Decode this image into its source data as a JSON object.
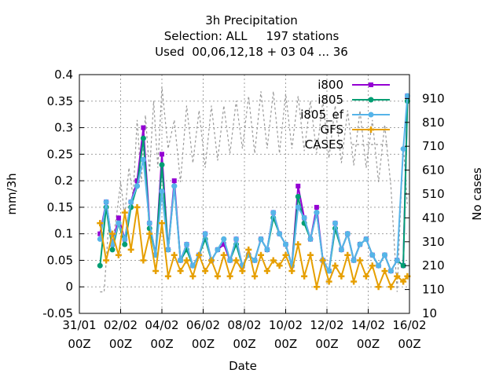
{
  "chart_data": {
    "type": "line",
    "title_lines": [
      "3h Precipitation",
      "Selection: ALL     197 stations",
      "Used  00,06,12,18 + 03 04 ... 36"
    ],
    "xlabel": "Date",
    "ylabel": "mm/3h",
    "y2label": "No cases",
    "x_ticks": [
      {
        "top": "31/01",
        "bottom": "00Z"
      },
      {
        "top": "02/02",
        "bottom": "00Z"
      },
      {
        "top": "04/02",
        "bottom": "00Z"
      },
      {
        "top": "06/02",
        "bottom": "00Z"
      },
      {
        "top": "08/02",
        "bottom": "00Z"
      },
      {
        "top": "10/02",
        "bottom": "00Z"
      },
      {
        "top": "12/02",
        "bottom": "00Z"
      },
      {
        "top": "14/02",
        "bottom": "00Z"
      },
      {
        "top": "16/02",
        "bottom": "00Z"
      }
    ],
    "xlim_days": [
      0,
      16
    ],
    "ylim": [
      -0.05,
      0.4
    ],
    "y_ticks": [
      "-0.05",
      "0",
      "0.05",
      "0.1",
      "0.15",
      "0.2",
      "0.25",
      "0.3",
      "0.35",
      "0.4"
    ],
    "y2lim": [
      10,
      1010
    ],
    "y2_ticks": [
      "10",
      "110",
      "210",
      "310",
      "410",
      "510",
      "610",
      "710",
      "810",
      "910"
    ],
    "grid": true,
    "legend_position": "top-right",
    "series": [
      {
        "name": "i800",
        "color": "#9400d3",
        "marker": "square",
        "axis": "y1",
        "x_days": [
          1.0,
          1.3,
          1.6,
          1.9,
          2.2,
          2.5,
          2.8,
          3.1,
          3.4,
          3.7,
          4.0,
          4.3,
          4.6,
          4.9,
          5.2,
          5.5,
          5.8,
          6.1,
          6.4,
          6.7,
          7.0,
          7.3,
          7.6,
          7.9,
          8.2,
          8.5,
          8.8,
          9.1,
          9.4,
          9.7,
          10.0,
          10.3,
          10.6,
          10.9,
          11.2,
          11.5,
          11.8,
          12.1,
          12.4,
          12.7,
          13.0,
          13.3,
          13.6,
          13.9,
          14.2,
          14.5,
          14.8,
          15.1,
          15.4,
          15.7,
          15.9
        ],
        "values": [
          0.1,
          0.16,
          0.08,
          0.13,
          0.09,
          0.16,
          0.2,
          0.3,
          0.12,
          0.06,
          0.25,
          0.07,
          0.2,
          0.05,
          0.08,
          0.04,
          0.06,
          0.1,
          0.05,
          0.07,
          0.08,
          0.05,
          0.09,
          0.04,
          0.06,
          0.05,
          0.09,
          0.07,
          0.14,
          0.1,
          0.08,
          0.04,
          0.19,
          0.13,
          0.09,
          0.15,
          0.05,
          0.03,
          0.12,
          0.07,
          0.1,
          0.05,
          0.08,
          0.09,
          0.06,
          0.04,
          0.06,
          0.03,
          0.05,
          0.04,
          0.36
        ]
      },
      {
        "name": "i805",
        "color": "#009e73",
        "marker": "circle",
        "axis": "y1",
        "x_days": [
          1.0,
          1.3,
          1.6,
          1.9,
          2.2,
          2.5,
          2.8,
          3.1,
          3.4,
          3.7,
          4.0,
          4.3,
          4.6,
          4.9,
          5.2,
          5.5,
          5.8,
          6.1,
          6.4,
          6.7,
          7.0,
          7.3,
          7.6,
          7.9,
          8.2,
          8.5,
          8.8,
          9.1,
          9.4,
          9.7,
          10.0,
          10.3,
          10.6,
          10.9,
          11.2,
          11.5,
          11.8,
          12.1,
          12.4,
          12.7,
          13.0,
          13.3,
          13.6,
          13.9,
          14.2,
          14.5,
          14.8,
          15.1,
          15.4,
          15.7,
          15.9
        ],
        "values": [
          0.04,
          0.15,
          0.07,
          0.12,
          0.08,
          0.15,
          0.19,
          0.28,
          0.11,
          0.06,
          0.23,
          0.07,
          0.19,
          0.05,
          0.07,
          0.04,
          0.06,
          0.09,
          0.05,
          0.07,
          0.09,
          0.05,
          0.08,
          0.04,
          0.06,
          0.05,
          0.09,
          0.07,
          0.13,
          0.1,
          0.08,
          0.04,
          0.17,
          0.12,
          0.09,
          0.14,
          0.05,
          0.03,
          0.11,
          0.07,
          0.1,
          0.05,
          0.08,
          0.09,
          0.06,
          0.04,
          0.06,
          0.03,
          0.05,
          0.04,
          0.35
        ]
      },
      {
        "name": "i805_ef",
        "color": "#56b4e9",
        "marker": "circle",
        "axis": "y1",
        "x_days": [
          1.0,
          1.3,
          1.6,
          1.9,
          2.2,
          2.5,
          2.8,
          3.1,
          3.4,
          3.7,
          4.0,
          4.3,
          4.6,
          4.9,
          5.2,
          5.5,
          5.8,
          6.1,
          6.4,
          6.7,
          7.0,
          7.3,
          7.6,
          7.9,
          8.2,
          8.5,
          8.8,
          9.1,
          9.4,
          9.7,
          10.0,
          10.3,
          10.6,
          10.9,
          11.2,
          11.5,
          11.8,
          12.1,
          12.4,
          12.7,
          13.0,
          13.3,
          13.6,
          13.9,
          14.2,
          14.5,
          14.8,
          15.1,
          15.4,
          15.7,
          15.9
        ],
        "values": [
          0.09,
          0.16,
          0.08,
          0.12,
          0.09,
          0.16,
          0.19,
          0.24,
          0.12,
          0.06,
          0.18,
          0.07,
          0.19,
          0.05,
          0.08,
          0.04,
          0.06,
          0.1,
          0.05,
          0.07,
          0.09,
          0.05,
          0.09,
          0.04,
          0.06,
          0.05,
          0.09,
          0.07,
          0.14,
          0.1,
          0.08,
          0.04,
          0.15,
          0.13,
          0.09,
          0.14,
          0.05,
          0.03,
          0.12,
          0.07,
          0.1,
          0.05,
          0.08,
          0.09,
          0.06,
          0.04,
          0.06,
          0.03,
          0.05,
          0.26,
          0.36
        ]
      },
      {
        "name": "GFS",
        "color": "#e69f00",
        "marker": "cross",
        "axis": "y1",
        "x_days": [
          1.0,
          1.3,
          1.6,
          1.9,
          2.2,
          2.5,
          2.8,
          3.1,
          3.4,
          3.7,
          4.0,
          4.3,
          4.6,
          4.9,
          5.2,
          5.5,
          5.8,
          6.1,
          6.4,
          6.7,
          7.0,
          7.3,
          7.6,
          7.9,
          8.2,
          8.5,
          8.8,
          9.1,
          9.4,
          9.7,
          10.0,
          10.3,
          10.6,
          10.9,
          11.2,
          11.5,
          11.8,
          12.1,
          12.4,
          12.7,
          13.0,
          13.3,
          13.6,
          13.9,
          14.2,
          14.5,
          14.8,
          15.1,
          15.4,
          15.7,
          15.9
        ],
        "values": [
          0.12,
          0.05,
          0.1,
          0.06,
          0.14,
          0.07,
          0.15,
          0.05,
          0.1,
          0.03,
          0.12,
          0.02,
          0.06,
          0.03,
          0.05,
          0.02,
          0.06,
          0.03,
          0.05,
          0.02,
          0.06,
          0.02,
          0.05,
          0.03,
          0.07,
          0.02,
          0.06,
          0.03,
          0.05,
          0.04,
          0.06,
          0.03,
          0.08,
          0.02,
          0.06,
          0.0,
          0.05,
          0.01,
          0.04,
          0.02,
          0.06,
          0.01,
          0.05,
          0.02,
          0.04,
          0.0,
          0.03,
          0.0,
          0.02,
          0.01,
          0.02
        ]
      },
      {
        "name": "CASES",
        "color": "#999999",
        "marker": "none",
        "dashed": true,
        "axis": "y2",
        "x_days": [
          1.0,
          1.2,
          1.4,
          1.6,
          1.8,
          2.0,
          2.2,
          2.4,
          2.6,
          2.8,
          3.0,
          3.2,
          3.4,
          3.6,
          3.8,
          4.0,
          4.3,
          4.6,
          4.9,
          5.2,
          5.5,
          5.8,
          6.1,
          6.4,
          6.7,
          7.0,
          7.3,
          7.6,
          7.9,
          8.2,
          8.5,
          8.8,
          9.1,
          9.4,
          9.7,
          10.0,
          10.3,
          10.6,
          10.9,
          11.2,
          11.5,
          11.8,
          12.1,
          12.4,
          12.7,
          13.0,
          13.3,
          13.6,
          13.9,
          14.2,
          14.5,
          14.8,
          15.1,
          15.4,
          15.7,
          15.9
        ],
        "values": [
          100,
          100,
          360,
          300,
          420,
          560,
          420,
          620,
          500,
          820,
          560,
          840,
          600,
          900,
          620,
          960,
          700,
          820,
          560,
          880,
          640,
          860,
          620,
          880,
          650,
          880,
          680,
          900,
          700,
          920,
          680,
          940,
          700,
          940,
          680,
          930,
          700,
          920,
          690,
          900,
          680,
          900,
          660,
          880,
          640,
          860,
          630,
          860,
          620,
          820,
          560,
          800,
          540,
          100,
          720,
          460
        ]
      }
    ]
  }
}
